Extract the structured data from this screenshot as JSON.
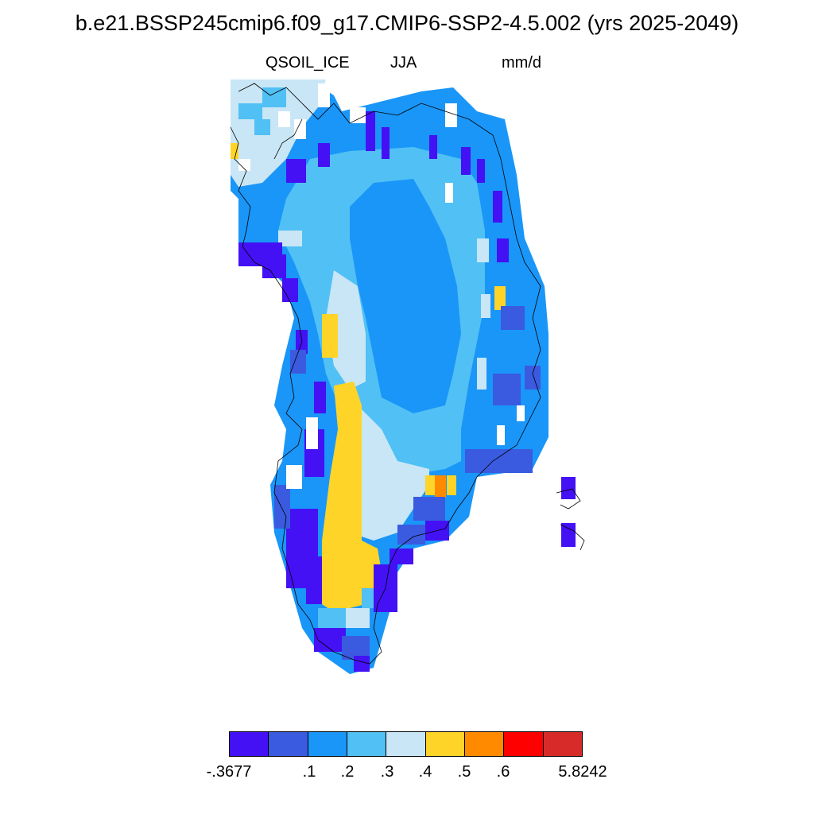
{
  "title": "b.e21.BSSP245cmip6.f09_g17.CMIP6-SSP2-4.5.002 (yrs 2025-2049)",
  "variable": "QSOIL_ICE",
  "season": "JJA",
  "units": "mm/d",
  "colorbar": {
    "colors": [
      "#4411f5",
      "#3a5ae0",
      "#1a96f8",
      "#51c0f4",
      "#c8e6f6",
      "#ffd429",
      "#ff8a00",
      "#fe0000",
      "#d62b29"
    ],
    "labels": [
      "-.3677",
      ".1",
      ".2",
      ".3",
      ".4",
      ".5",
      ".6",
      "5.8242"
    ]
  }
}
